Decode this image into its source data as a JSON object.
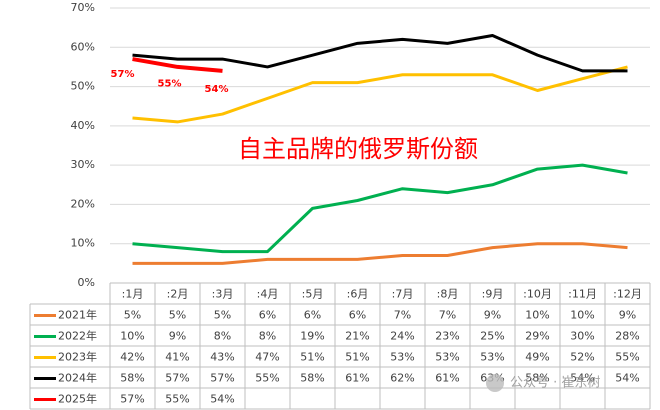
{
  "chart_data": {
    "type": "line",
    "annotation": "自主品牌的俄罗斯份额",
    "watermark": "公众号 · 崔东树",
    "categories": [
      ":1月",
      ":2月",
      ":3月",
      ":4月",
      ":5月",
      ":6月",
      ":7月",
      ":8月",
      ":9月",
      ":10月",
      ":11月",
      ":12月"
    ],
    "ylim": [
      0,
      70
    ],
    "yticks": [
      {
        "value": 0,
        "label": "0%"
      },
      {
        "value": 10,
        "label": "10%"
      },
      {
        "value": 20,
        "label": "20%"
      },
      {
        "value": 30,
        "label": "30%"
      },
      {
        "value": 40,
        "label": "40%"
      },
      {
        "value": 50,
        "label": "50%"
      },
      {
        "value": 60,
        "label": "60%"
      },
      {
        "value": 70,
        "label": "70%"
      }
    ],
    "grid": true,
    "series": [
      {
        "name": "2021年",
        "color": "#ed7d31",
        "values": [
          5,
          5,
          5,
          6,
          6,
          6,
          7,
          7,
          9,
          10,
          10,
          9
        ],
        "value_labels": [
          "5%",
          "5%",
          "5%",
          "6%",
          "6%",
          "6%",
          "7%",
          "7%",
          "9%",
          "10%",
          "10%",
          "9%"
        ]
      },
      {
        "name": "2022年",
        "color": "#00b050",
        "values": [
          10,
          9,
          8,
          8,
          19,
          21,
          24,
          23,
          25,
          29,
          30,
          28
        ],
        "value_labels": [
          "10%",
          "9%",
          "8%",
          "8%",
          "19%",
          "21%",
          "24%",
          "23%",
          "25%",
          "29%",
          "30%",
          "28%"
        ]
      },
      {
        "name": "2023年",
        "color": "#ffc000",
        "values": [
          42,
          41,
          43,
          47,
          51,
          51,
          53,
          53,
          53,
          49,
          52,
          55
        ],
        "value_labels": [
          "42%",
          "41%",
          "43%",
          "47%",
          "51%",
          "51%",
          "53%",
          "53%",
          "53%",
          "49%",
          "52%",
          "55%"
        ]
      },
      {
        "name": "2024年",
        "color": "#000000",
        "values": [
          58,
          57,
          57,
          55,
          58,
          61,
          62,
          61,
          63,
          58,
          54,
          54
        ],
        "value_labels": [
          "58%",
          "57%",
          "57%",
          "55%",
          "58%",
          "61%",
          "62%",
          "61%",
          "63%",
          "58%",
          "54%",
          "54%"
        ]
      },
      {
        "name": "2025年",
        "color": "#ff0000",
        "values": [
          57,
          55,
          54,
          null,
          null,
          null,
          null,
          null,
          null,
          null,
          null,
          null
        ],
        "value_labels": [
          "57%",
          "55%",
          "54%",
          null,
          null,
          null,
          null,
          null,
          null,
          null,
          null,
          null
        ],
        "labeled": true
      }
    ]
  }
}
